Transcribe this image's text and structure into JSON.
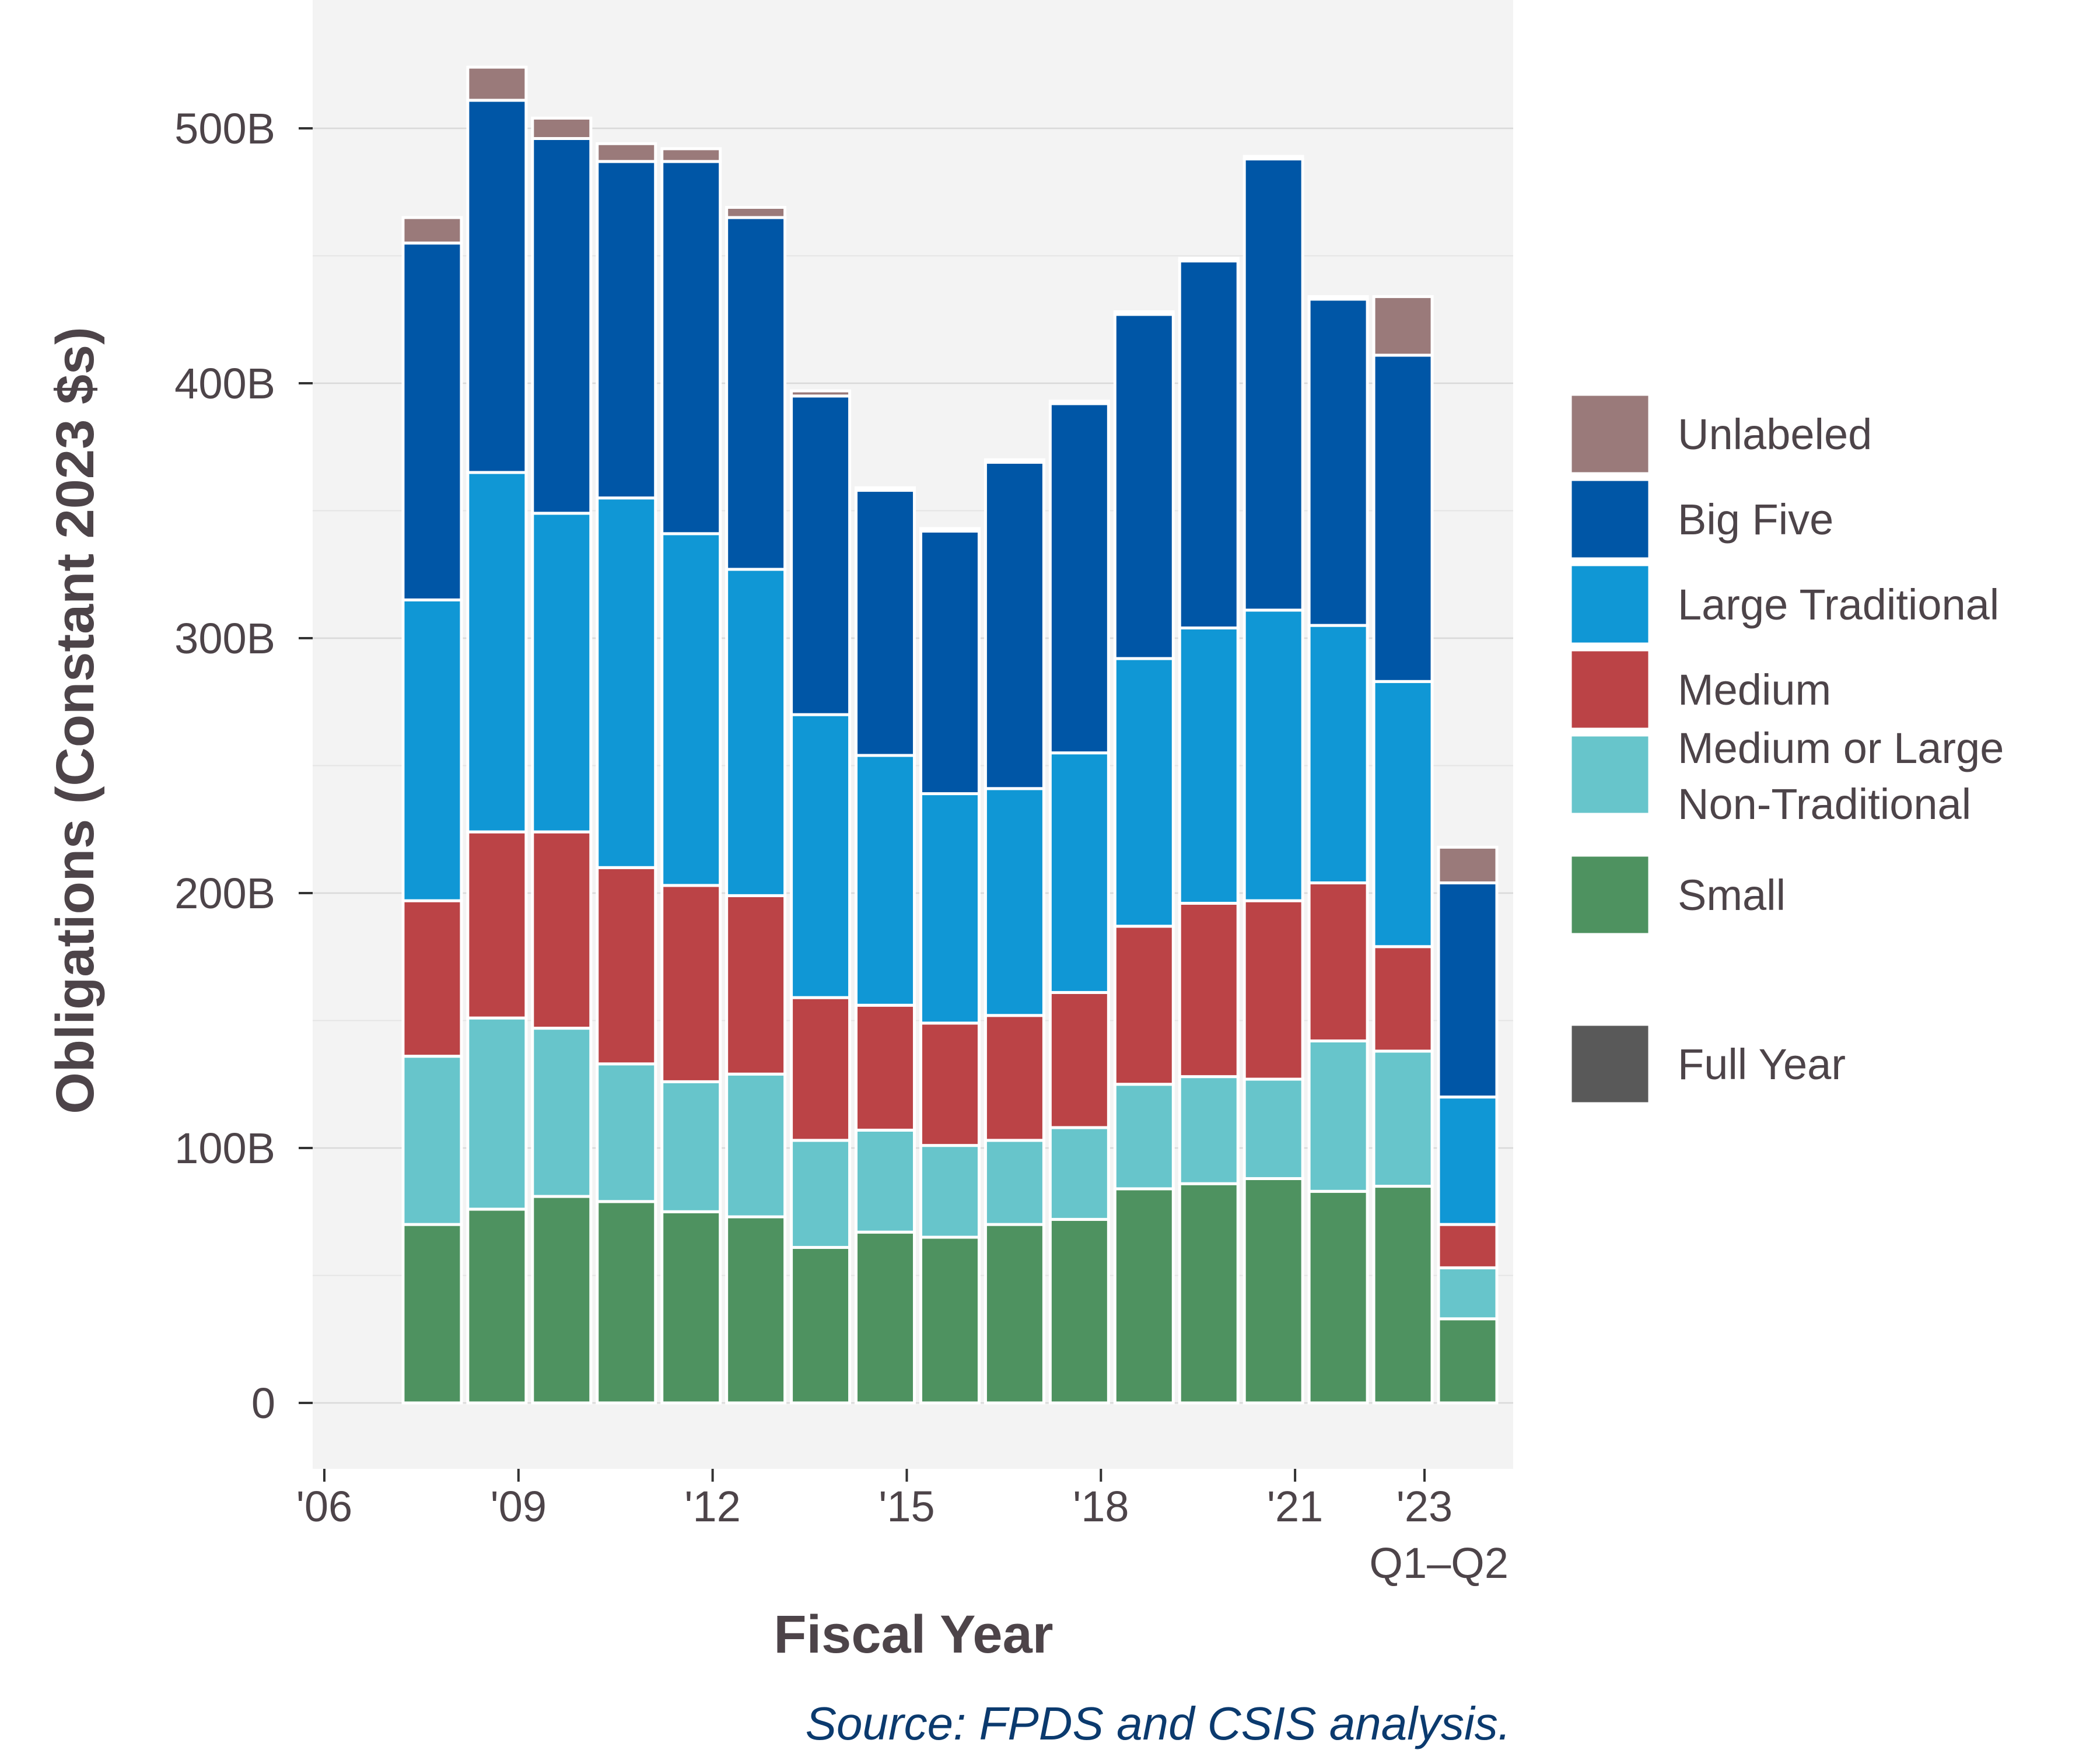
{
  "chart_data": {
    "type": "bar",
    "stacked": true,
    "ylabel": "Obligations (Constant 2023 $s)",
    "xlabel": "Fiscal Year",
    "source": "Source: FPDS and CSIS analysis.",
    "ylim": [
      -20,
      550
    ],
    "yticks": [
      0,
      100,
      200,
      300,
      400,
      500
    ],
    "ytick_labels": [
      "0",
      "100B",
      "200B",
      "300B",
      "400B",
      "500B"
    ],
    "xlim": [
      2005.8,
      2024.5
    ],
    "xticks": [
      2006,
      2009,
      2012,
      2015,
      2018,
      2021,
      2023
    ],
    "xtick_labels": [
      "'06",
      "'09",
      "'12",
      "'15",
      "'18",
      "'21",
      "'23"
    ],
    "xtick_sublabel": "Q1–Q2",
    "categories": [
      2007,
      2008,
      2009,
      2010,
      2011,
      2012,
      2013,
      2014,
      2015,
      2016,
      2017,
      2018,
      2019,
      2020,
      2021,
      2022,
      2023
    ],
    "series": [
      {
        "name": "Small",
        "color": "#4e9260",
        "values": [
          70,
          76,
          81,
          79,
          75,
          73,
          61,
          67,
          65,
          70,
          72,
          84,
          86,
          88,
          83,
          85,
          33
        ]
      },
      {
        "name": "Medium or Large Non-Traditional",
        "color": "#67c5cb",
        "values": [
          66,
          75,
          66,
          54,
          51,
          56,
          42,
          40,
          36,
          33,
          36,
          41,
          42,
          39,
          59,
          53,
          20
        ]
      },
      {
        "name": "Medium",
        "color": "#bb4346",
        "values": [
          61,
          73,
          77,
          77,
          77,
          70,
          56,
          49,
          48,
          49,
          53,
          62,
          68,
          70,
          62,
          41,
          17
        ]
      },
      {
        "name": "Large Traditional",
        "color": "#1097d5",
        "values": [
          118,
          141,
          125,
          145,
          138,
          128,
          111,
          98,
          90,
          89,
          94,
          105,
          108,
          114,
          101,
          104,
          50
        ]
      },
      {
        "name": "Big Five",
        "color": "#0056a6",
        "values": [
          140,
          146,
          147,
          132,
          146,
          138,
          125,
          104,
          103,
          128,
          137,
          135,
          144,
          177,
          128,
          128,
          84
        ]
      },
      {
        "name": "Unlabeled",
        "color": "#9a7a7a",
        "values": [
          10,
          13,
          8,
          7,
          5,
          4,
          2,
          1,
          1,
          1,
          1,
          1,
          1,
          1,
          1,
          23,
          14
        ]
      }
    ],
    "legend": {
      "placement": "right",
      "entries": [
        {
          "label": "Unlabeled",
          "color": "#9a7a7a"
        },
        {
          "label": "Big Five",
          "color": "#0056a6"
        },
        {
          "label": "Large Traditional",
          "color": "#1097d5"
        },
        {
          "label": "Medium",
          "color": "#bb4346"
        },
        {
          "label": "Medium or Large Non-Traditional",
          "label_lines": [
            "Medium or Large",
            "Non-Traditional"
          ],
          "color": "#67c5cb"
        },
        {
          "label": "Small",
          "color": "#4e9260"
        }
      ],
      "extra": {
        "label": "Full Year",
        "color": "#595959"
      }
    },
    "grid": true,
    "panel_background": "#f3f3f3",
    "grid_color": "#d9d9d9",
    "text_color": "#4d4449",
    "source_color": "#0b3a6e"
  }
}
